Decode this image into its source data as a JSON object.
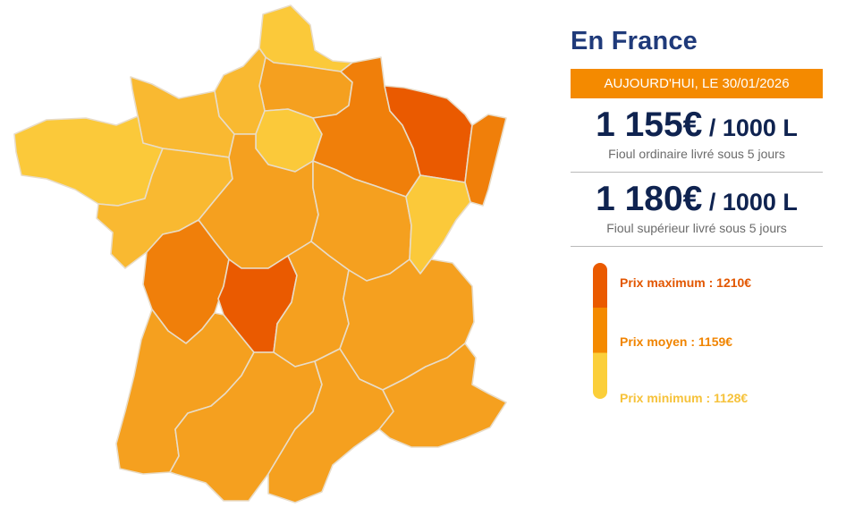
{
  "panel": {
    "title": "En France",
    "date_label": "AUJOURD'HUI, LE 30/01/2026",
    "prices": [
      {
        "value": "1 155€",
        "unit": " / 1000 L",
        "description": "Fioul ordinaire livré sous 5 jours"
      },
      {
        "value": "1 180€",
        "unit": " / 1000 L",
        "description": "Fioul supérieur livré sous 5 jours"
      }
    ],
    "legend": {
      "max_label": "Prix maximum : 1210€",
      "avg_label": "Prix moyen : 1159€",
      "min_label": "Prix minimum : 1128€"
    }
  },
  "colors": {
    "max": "#ea5a00",
    "high": "#f07f0a",
    "avg": "#f5a01f",
    "low": "#f9b931",
    "min": "#fbc93a",
    "title": "#1f3a7a",
    "price": "#0f2350",
    "date_bar": "#f48a00"
  },
  "map": {
    "regions": [
      {
        "name": "nord",
        "level": "min"
      },
      {
        "name": "picardie",
        "level": "avg"
      },
      {
        "name": "haute-normandie",
        "level": "low"
      },
      {
        "name": "basse-normandie",
        "level": "low"
      },
      {
        "name": "bretagne",
        "level": "min"
      },
      {
        "name": "ile-de-france",
        "level": "min"
      },
      {
        "name": "champagne-ardenne",
        "level": "high"
      },
      {
        "name": "lorraine",
        "level": "max"
      },
      {
        "name": "alsace",
        "level": "high"
      },
      {
        "name": "pays-de-la-loire",
        "level": "low"
      },
      {
        "name": "centre",
        "level": "avg"
      },
      {
        "name": "bourgogne",
        "level": "avg"
      },
      {
        "name": "franche-comte",
        "level": "min"
      },
      {
        "name": "poitou-charentes",
        "level": "high"
      },
      {
        "name": "limousin",
        "level": "max"
      },
      {
        "name": "auvergne",
        "level": "avg"
      },
      {
        "name": "rhone-alpes",
        "level": "avg"
      },
      {
        "name": "aquitaine",
        "level": "avg"
      },
      {
        "name": "midi-pyrenees",
        "level": "avg"
      },
      {
        "name": "languedoc-roussillon",
        "level": "avg"
      },
      {
        "name": "provence-alpes-cote-dazur",
        "level": "avg"
      }
    ]
  }
}
